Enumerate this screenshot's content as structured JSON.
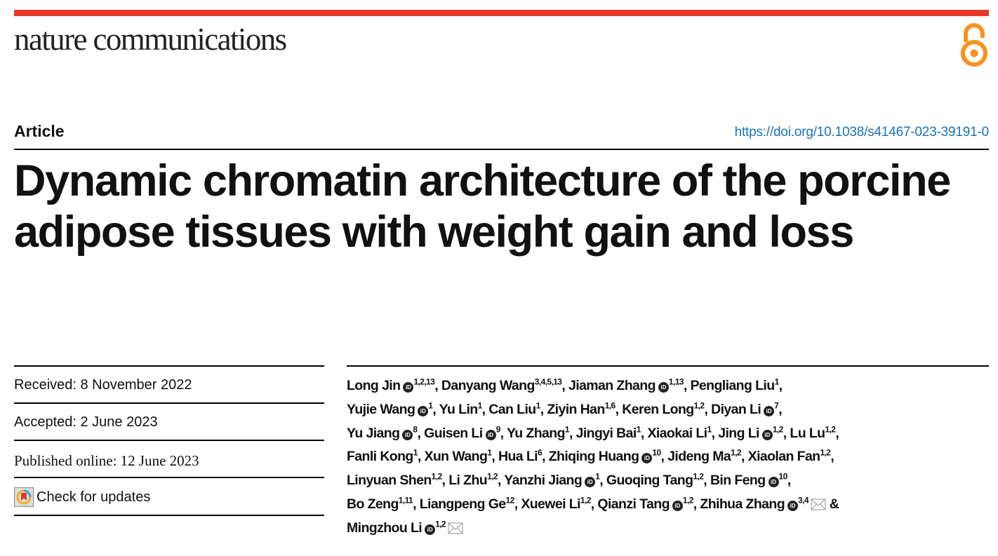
{
  "header": {
    "journal": "nature communications",
    "brand_color": "#e8372a",
    "open_access_icon": "open-access-lock-icon",
    "open_access_color": "#f7931e"
  },
  "article": {
    "type": "Article",
    "doi": "https://doi.org/10.1038/s41467-023-39191-0",
    "title": "Dynamic chromatin architecture of the porcine adipose tissues with weight gain and loss"
  },
  "dates": {
    "received": "Received: 8 November 2022",
    "accepted": "Accepted: 2 June 2023",
    "published": "Published online: 12 June 2023"
  },
  "check_updates": "Check for updates",
  "orcid_label": "iD",
  "author_lines": [
    [
      {
        "name": "Long Jin",
        "sup": "1,2,13",
        "orcid": true,
        "sep": ", "
      },
      {
        "name": "Danyang Wang",
        "sup": "3,4,5,13",
        "sep": ", "
      },
      {
        "name": "Jiaman Zhang",
        "sup": "1,13",
        "orcid": true,
        "sep": ", "
      },
      {
        "name": "Pengliang Liu",
        "sup": "1",
        "sep": ","
      }
    ],
    [
      {
        "name": "Yujie Wang",
        "sup": "1",
        "orcid": true,
        "sep": ", "
      },
      {
        "name": "Yu Lin",
        "sup": "1",
        "sep": ", "
      },
      {
        "name": "Can Liu",
        "sup": "1",
        "sep": ", "
      },
      {
        "name": "Ziyin Han",
        "sup": "1,6",
        "sep": ", "
      },
      {
        "name": "Keren Long",
        "sup": "1,2",
        "sep": ", "
      },
      {
        "name": "Diyan Li",
        "sup": "7",
        "orcid": true,
        "sep": ","
      }
    ],
    [
      {
        "name": "Yu Jiang",
        "sup": "8",
        "orcid": true,
        "sep": ", "
      },
      {
        "name": "Guisen Li",
        "sup": "9",
        "orcid": true,
        "sep": ", "
      },
      {
        "name": "Yu Zhang",
        "sup": "1",
        "sep": ", "
      },
      {
        "name": "Jingyi Bai",
        "sup": "1",
        "sep": ", "
      },
      {
        "name": "Xiaokai Li",
        "sup": "1",
        "sep": ", "
      },
      {
        "name": "Jing Li",
        "sup": "1,2",
        "orcid": true,
        "sep": ", "
      },
      {
        "name": "Lu Lu",
        "sup": "1,2",
        "sep": ","
      }
    ],
    [
      {
        "name": "Fanli Kong",
        "sup": "1",
        "sep": ", "
      },
      {
        "name": "Xun Wang",
        "sup": "1",
        "sep": ", "
      },
      {
        "name": "Hua Li",
        "sup": "6",
        "sep": ", "
      },
      {
        "name": "Zhiqing Huang",
        "sup": "10",
        "orcid": true,
        "sep": ", "
      },
      {
        "name": "Jideng Ma",
        "sup": "1,2",
        "sep": ", "
      },
      {
        "name": "Xiaolan Fan",
        "sup": "1,2",
        "sep": ","
      }
    ],
    [
      {
        "name": "Linyuan Shen",
        "sup": "1,2",
        "sep": ", "
      },
      {
        "name": "Li Zhu",
        "sup": "1,2",
        "sep": ", "
      },
      {
        "name": "Yanzhi Jiang",
        "sup": "1",
        "orcid": true,
        "sep": ", "
      },
      {
        "name": "Guoqing Tang",
        "sup": "1,2",
        "sep": ", "
      },
      {
        "name": "Bin Feng",
        "sup": "10",
        "orcid": true,
        "sep": ","
      }
    ],
    [
      {
        "name": "Bo Zeng",
        "sup": "1,11",
        "sep": ", "
      },
      {
        "name": "Liangpeng Ge",
        "sup": "12",
        "sep": ", "
      },
      {
        "name": "Xuewei Li",
        "sup": "1,2",
        "sep": ", "
      },
      {
        "name": "Qianzi Tang",
        "sup": "1,2",
        "orcid": true,
        "sep": ", "
      },
      {
        "name": "Zhihua Zhang",
        "sup": "3,4",
        "orcid": true,
        "email": true,
        "sep": " &"
      }
    ],
    [
      {
        "name": "Mingzhou Li",
        "sup": "1,2",
        "orcid": true,
        "email": true,
        "sep": ""
      }
    ]
  ]
}
